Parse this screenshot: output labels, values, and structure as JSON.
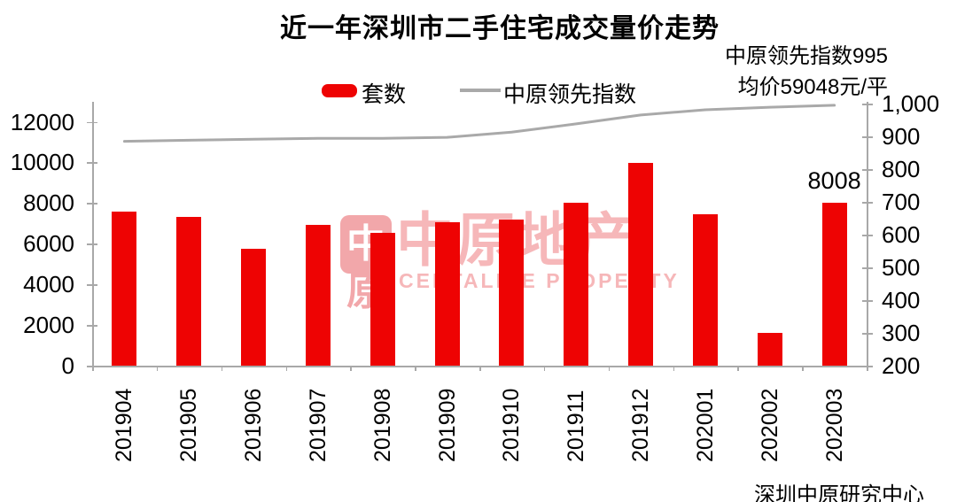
{
  "title": "近一年深圳市二手住宅成交量价走势",
  "annotations": {
    "index_note": "中原领先指数995",
    "price_note": "均价59048元/平"
  },
  "legend": {
    "bars_label": "套数",
    "line_label": "中原领先指数"
  },
  "watermark": {
    "logo_top": "中",
    "logo_bottom": "原",
    "text": "中原地产",
    "subtext": "CENTALINE PROPERTY"
  },
  "footer": "深圳中原研究中心",
  "colors": {
    "bar": "#ee0303",
    "line": "#a9a9a9",
    "axis": "#a8a8a8",
    "watermark_strong": "#f2a7aa",
    "watermark_light": "#f6b7b9"
  },
  "chart_data": {
    "type": "bar",
    "title": "近一年深圳市二手住宅成交量价走势",
    "categories": [
      "201904",
      "201905",
      "201906",
      "201907",
      "201908",
      "201909",
      "201910",
      "201911",
      "201912",
      "202001",
      "202002",
      "202003"
    ],
    "series": [
      {
        "name": "套数",
        "type": "bar",
        "axis": "left",
        "color": "#ee0303",
        "values": [
          7580,
          7300,
          5730,
          6930,
          6550,
          7070,
          7180,
          8010,
          9970,
          7470,
          1600,
          8008
        ]
      },
      {
        "name": "中原领先指数",
        "type": "line",
        "axis": "right",
        "color": "#a9a9a9",
        "values": [
          885,
          888,
          891,
          894,
          894,
          897,
          913,
          938,
          965,
          981,
          989,
          995
        ]
      }
    ],
    "left_axis": {
      "min": 0,
      "max": 12000,
      "step": 2000
    },
    "right_axis": {
      "min": 200,
      "max": 1000,
      "step": 100,
      "top_label": "1,000"
    },
    "grid": false,
    "legend_position": "top",
    "annotations": [
      "中原领先指数995",
      "均价59048元/平"
    ],
    "bar_value_label": {
      "category": "202003",
      "text": "8008"
    }
  }
}
